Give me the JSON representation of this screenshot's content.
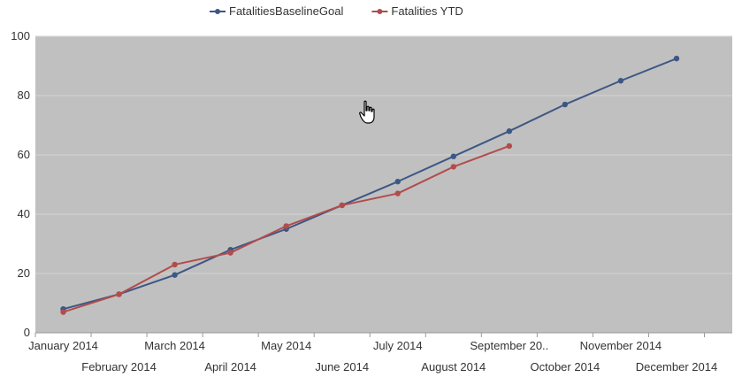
{
  "chart_data": {
    "type": "line",
    "title": "",
    "xlabel": "",
    "ylabel": "",
    "ylim": [
      0,
      100
    ],
    "yticks": [
      0,
      20,
      40,
      60,
      80,
      100
    ],
    "grid": "horizontal",
    "legend_position": "top-center",
    "categories": [
      "January 2014",
      "February 2014",
      "March 2014",
      "April 2014",
      "May 2014",
      "June 2014",
      "July 2014",
      "August 2014",
      "September 20..",
      "October 2014",
      "November 2014",
      "December 2014"
    ],
    "series": [
      {
        "name": "FatalitiesBaselineGoal",
        "color": "#3d5785",
        "values": [
          8,
          13,
          19.5,
          28,
          35,
          43,
          51,
          59.5,
          68,
          77,
          85,
          92.5
        ]
      },
      {
        "name": "Fatalities YTD",
        "color": "#b24c4c",
        "values": [
          7,
          13,
          23,
          27,
          36,
          43,
          47,
          56,
          63,
          null,
          null,
          null
        ]
      }
    ],
    "colors": {
      "plot_background": "#c0c0c0",
      "gridline": "#d3d3d3",
      "axis": "#999999"
    }
  }
}
